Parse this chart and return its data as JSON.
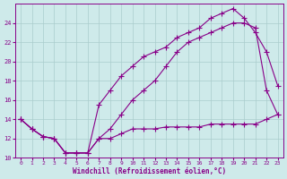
{
  "xlabel": "Windchill (Refroidissement éolien,°C)",
  "bg_color": "#ceeaea",
  "line_color": "#880088",
  "grid_color": "#aacccc",
  "xlim": [
    -0.5,
    23.5
  ],
  "ylim": [
    10,
    26
  ],
  "xticks": [
    0,
    1,
    2,
    3,
    4,
    5,
    6,
    7,
    8,
    9,
    10,
    11,
    12,
    13,
    14,
    15,
    16,
    17,
    18,
    19,
    20,
    21,
    22,
    23
  ],
  "yticks": [
    10,
    12,
    14,
    16,
    18,
    20,
    22,
    24
  ],
  "line1_x": [
    0,
    1,
    2,
    3,
    4,
    5,
    6,
    7,
    8,
    9,
    10,
    11,
    12,
    13,
    14,
    15,
    16,
    17,
    18,
    19,
    20,
    21,
    22,
    23
  ],
  "line1_y": [
    14,
    13,
    12.2,
    12,
    10.5,
    10.5,
    10.5,
    12,
    13,
    14.5,
    16,
    17,
    18,
    19.5,
    21,
    22,
    22.5,
    23,
    23.5,
    24,
    24,
    23.5,
    17,
    14.5
  ],
  "line2_x": [
    0,
    1,
    2,
    3,
    4,
    5,
    6,
    7,
    8,
    9,
    10,
    11,
    12,
    13,
    14,
    15,
    16,
    17,
    18,
    19,
    20,
    21,
    22,
    23
  ],
  "line2_y": [
    14,
    13,
    12.2,
    12,
    10.5,
    10.5,
    10.5,
    15.5,
    17,
    18.5,
    19.5,
    20.5,
    21,
    21.5,
    22.5,
    23,
    23.5,
    24.5,
    25,
    25.5,
    24.5,
    23,
    21,
    17.5
  ],
  "line3_x": [
    0,
    1,
    2,
    3,
    4,
    5,
    6,
    7,
    8,
    9,
    10,
    11,
    12,
    13,
    14,
    15,
    16,
    17,
    18,
    19,
    20,
    21,
    22,
    23
  ],
  "line3_y": [
    14,
    13,
    12.2,
    12,
    10.5,
    10.5,
    10.5,
    12,
    12,
    12.5,
    13,
    13,
    13,
    13.2,
    13.2,
    13.2,
    13.2,
    13.5,
    13.5,
    13.5,
    13.5,
    13.5,
    14,
    14.5
  ]
}
